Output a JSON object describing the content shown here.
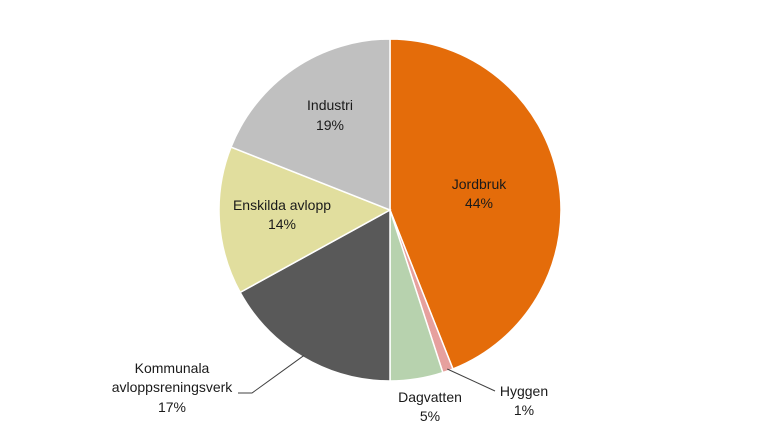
{
  "chart_data": {
    "type": "pie",
    "title": "",
    "slices": [
      {
        "label": "Jordbruk",
        "percent_label": "44%",
        "value": 44,
        "color": "#E46C0A"
      },
      {
        "label": "Hyggen",
        "percent_label": "1%",
        "value": 1,
        "color": "#E6A09E"
      },
      {
        "label": "Dagvatten",
        "percent_label": "5%",
        "value": 5,
        "color": "#B7D2AE"
      },
      {
        "label": "Kommunala avloppsreningsverk",
        "label_lines": [
          "Kommunala",
          "avloppsreningsverk"
        ],
        "percent_label": "17%",
        "value": 17,
        "color": "#595959"
      },
      {
        "label": "Enskilda avlopp",
        "percent_label": "14%",
        "value": 14,
        "color": "#E1DE9E"
      },
      {
        "label": "Industri",
        "percent_label": "19%",
        "value": 19,
        "color": "#C0C0C0"
      }
    ],
    "legend": "none",
    "start": "top, clockwise"
  }
}
